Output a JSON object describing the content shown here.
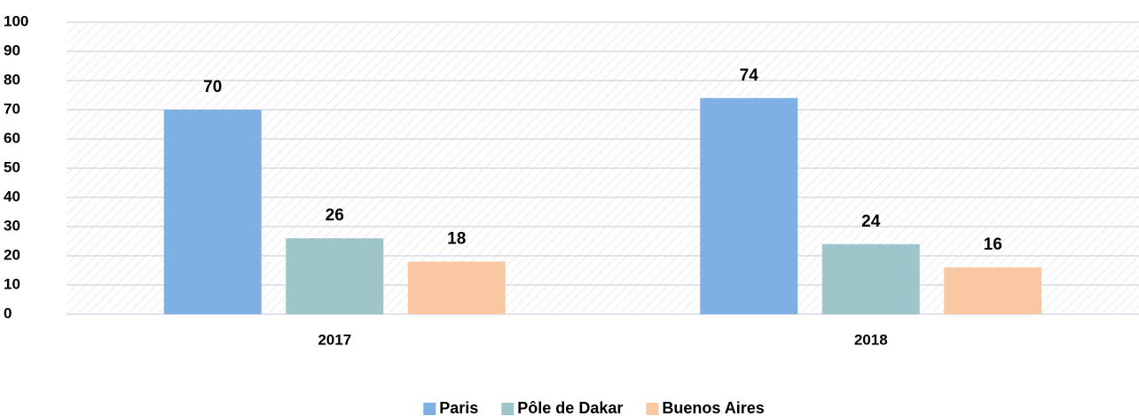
{
  "chart_data": {
    "type": "bar",
    "categories": [
      "2017",
      "2018"
    ],
    "series": [
      {
        "name": "Paris",
        "color": "#7fb0e4",
        "values": [
          70,
          74
        ]
      },
      {
        "name": "Pôle de Dakar",
        "color": "#9dc5ca",
        "values": [
          26,
          24
        ]
      },
      {
        "name": "Buenos Aires",
        "color": "#f9c8a2",
        "values": [
          18,
          16
        ]
      }
    ],
    "ylim": [
      0,
      100
    ],
    "yticks": [
      0,
      10,
      20,
      30,
      40,
      50,
      60,
      70,
      80,
      90,
      100
    ],
    "grid": true,
    "legend": "bottom"
  }
}
